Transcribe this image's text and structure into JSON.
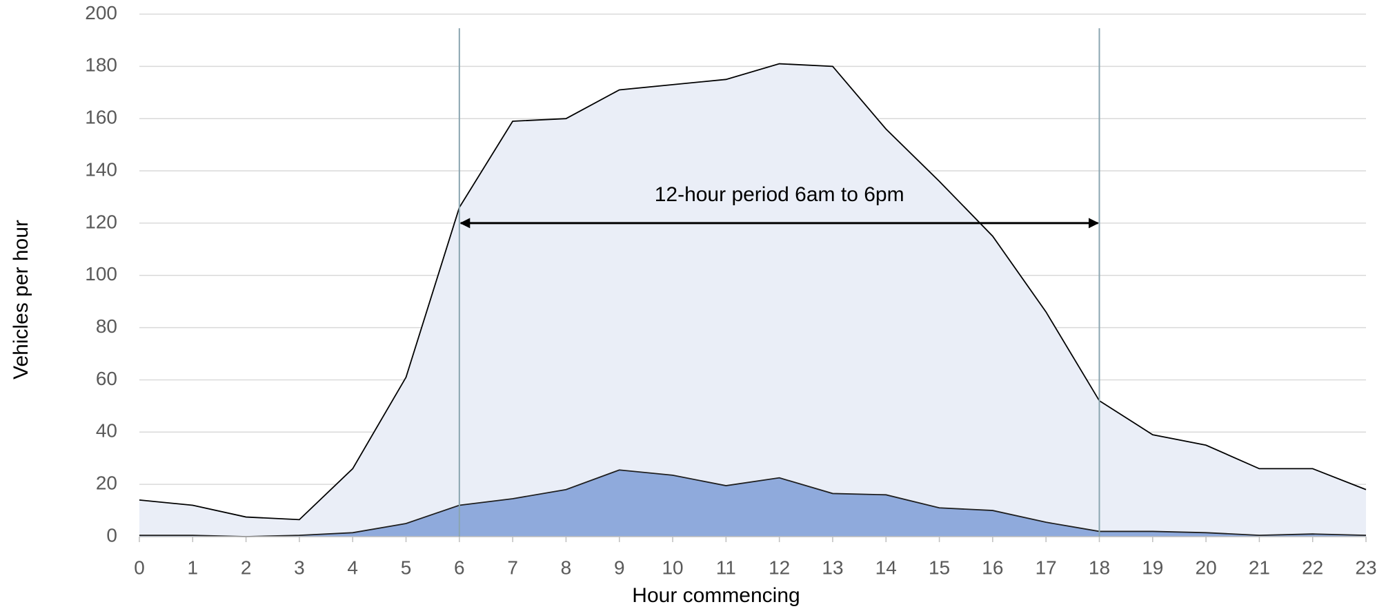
{
  "chart_data": {
    "type": "area",
    "x_label": "Hour commencing",
    "y_label": "Vehicles per hour",
    "x": [
      0,
      1,
      2,
      3,
      4,
      5,
      6,
      7,
      8,
      9,
      10,
      11,
      12,
      13,
      14,
      15,
      16,
      17,
      18,
      19,
      20,
      21,
      22,
      23
    ],
    "series": [
      {
        "color": "#eaeef7",
        "line_color": "#000000",
        "values": [
          14,
          12,
          7.5,
          6.5,
          26,
          61,
          126,
          159,
          160,
          171,
          173,
          175,
          181,
          180,
          156,
          136,
          115,
          86,
          52,
          39,
          35,
          26,
          26,
          18
        ]
      },
      {
        "color": "#8faadc",
        "line_color": "#1f1f1f",
        "values": [
          0.5,
          0.5,
          0,
          0.5,
          1.5,
          5,
          12,
          14.5,
          18,
          25.5,
          23.5,
          19.5,
          22.5,
          16.5,
          16,
          11,
          10,
          5.5,
          2,
          2,
          1.5,
          0.5,
          1,
          0.5
        ]
      }
    ],
    "xlim": [
      0,
      23
    ],
    "xticks": [
      0,
      1,
      2,
      3,
      4,
      5,
      6,
      7,
      8,
      9,
      10,
      11,
      12,
      13,
      14,
      15,
      16,
      17,
      18,
      19,
      20,
      21,
      22,
      23
    ],
    "ylim": [
      0,
      200
    ],
    "yticks": [
      0,
      20,
      40,
      60,
      80,
      100,
      120,
      140,
      160,
      180,
      200
    ],
    "grid": true,
    "annotation": {
      "text": "12-hour period 6am to 6pm",
      "x_start": 6,
      "x_end": 18,
      "y": 120,
      "line_color": "#8aa5b0"
    }
  }
}
